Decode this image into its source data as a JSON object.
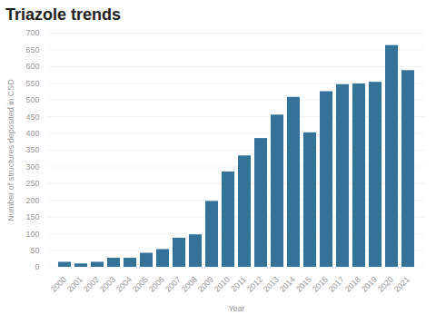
{
  "chart_data": {
    "type": "bar",
    "title": "Triazole trends",
    "x_label": "Year",
    "y_label": "Number of structures deposited in CSD",
    "categories": [
      "2000",
      "2001",
      "2002",
      "2003",
      "2004",
      "2005",
      "2006",
      "2007",
      "2008",
      "2009",
      "2010",
      "2011",
      "2012",
      "2013",
      "2014",
      "2015",
      "2016",
      "2017",
      "2018",
      "2019",
      "2020",
      "2021"
    ],
    "values": [
      15,
      10,
      15,
      27,
      27,
      42,
      53,
      87,
      97,
      197,
      285,
      333,
      385,
      455,
      508,
      402,
      525,
      546,
      548,
      553,
      663,
      588
    ],
    "color": "#33739a",
    "ylim": [
      0,
      700
    ],
    "yticks": [
      0,
      50,
      100,
      150,
      200,
      250,
      300,
      350,
      400,
      450,
      500,
      550,
      600,
      650,
      700
    ],
    "grid": true
  }
}
